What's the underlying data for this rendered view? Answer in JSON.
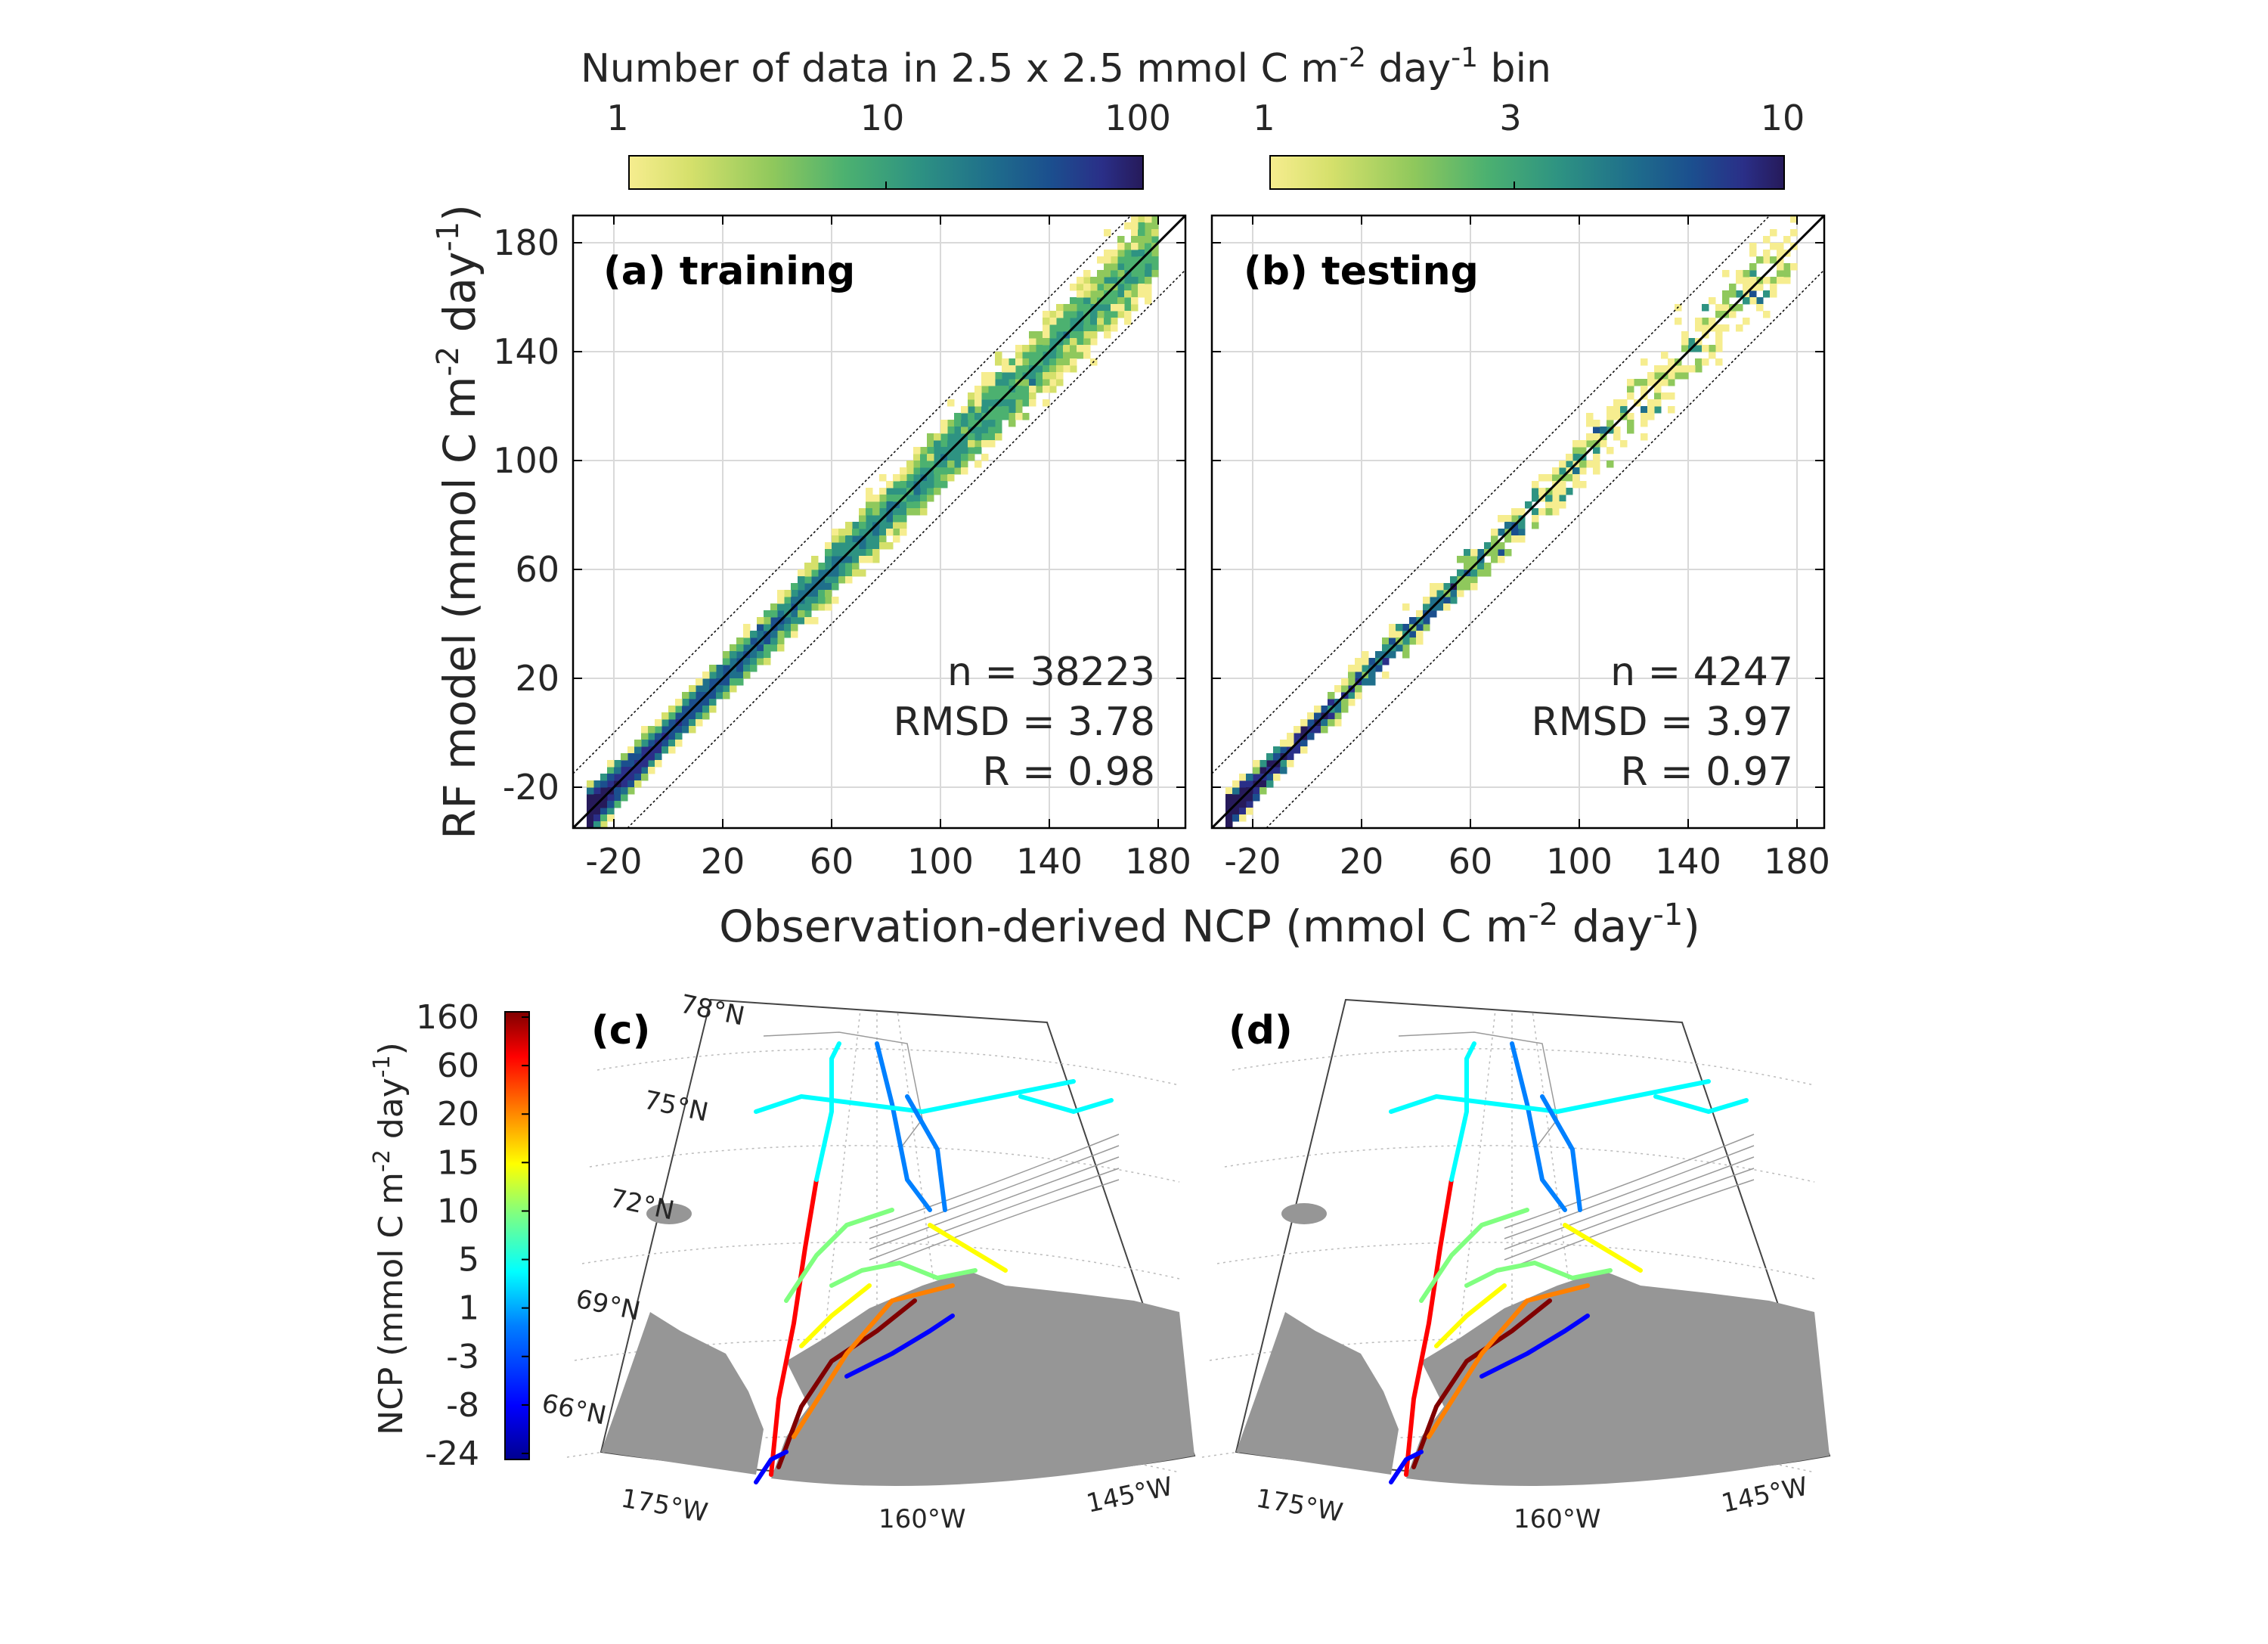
{
  "figure": {
    "top_colorbar_label": "Number of data in 2.5 x 2.5 mmol C m",
    "top_colorbar_label_sup1": "-2",
    "top_colorbar_label_mid": " day",
    "top_colorbar_label_sup2": "-1",
    "top_colorbar_label_end": " bin",
    "y_label_main": "RF model (mmol C m",
    "y_label_sup1": "-2",
    "y_label_mid": " day",
    "y_label_sup2": "-1",
    "y_label_end": ")",
    "x_label_main": "Observation-derived NCP (mmol C m",
    "x_label_sup1": "-2",
    "x_label_mid": " day",
    "x_label_sup2": "-1",
    "x_label_end": ")"
  },
  "colorbar_a": {
    "ticks": [
      "1",
      "10",
      "100"
    ],
    "scale": "log"
  },
  "colorbar_b": {
    "ticks": [
      "1",
      "3",
      "10"
    ],
    "scale": "log"
  },
  "colors": {
    "parula_like": [
      "#f6ed8f",
      "#d5e06b",
      "#8fc85c",
      "#4cb170",
      "#2e9382",
      "#1f6f8b",
      "#1b4f8e",
      "#2a2f88",
      "#261a5a"
    ],
    "jet_like": [
      "#00008f",
      "#0000ff",
      "#0080ff",
      "#00ffff",
      "#80ff80",
      "#ffff00",
      "#ff8000",
      "#ff0000",
      "#800000"
    ],
    "land": "#969696"
  },
  "chart_data": [
    {
      "type": "heatmap",
      "panel_label": "(a) training",
      "xlim": [
        -35,
        190
      ],
      "ylim": [
        -35,
        190
      ],
      "x_ticks": [
        "-20",
        "20",
        "60",
        "100",
        "140",
        "180"
      ],
      "y_ticks": [
        "-20",
        "20",
        "60",
        "100",
        "140",
        "180"
      ],
      "grid": true,
      "reference_lines": [
        "1:1 line",
        "±20 mmol offset lines"
      ],
      "stats": {
        "n": "n = 38223",
        "rmsd": "RMSD = 3.78",
        "r": "R = 0.98"
      },
      "description_points": [
        [
          -25,
          -25
        ],
        [
          0,
          0
        ],
        [
          20,
          20
        ],
        [
          40,
          40
        ],
        [
          60,
          60
        ],
        [
          80,
          80
        ],
        [
          100,
          100
        ],
        [
          120,
          120
        ],
        [
          140,
          140
        ],
        [
          170,
          145
        ]
      ]
    },
    {
      "type": "heatmap",
      "panel_label": "(b) testing",
      "xlim": [
        -35,
        190
      ],
      "ylim": [
        -35,
        190
      ],
      "x_ticks": [
        "-20",
        "20",
        "60",
        "100",
        "140",
        "180"
      ],
      "y_ticks": [
        "-20",
        "20",
        "60",
        "100",
        "140",
        "180"
      ],
      "grid": true,
      "reference_lines": [
        "1:1 line",
        "±20 mmol offset lines"
      ],
      "stats": {
        "n": "n = 4247",
        "rmsd": "RMSD = 3.97",
        "r": "R = 0.97"
      },
      "description_points": [
        [
          -25,
          -25
        ],
        [
          0,
          0
        ],
        [
          20,
          20
        ],
        [
          40,
          40
        ],
        [
          60,
          60
        ],
        [
          100,
          95
        ],
        [
          170,
          140
        ]
      ]
    }
  ],
  "maps": {
    "c_label": "(c)",
    "d_label": "(d)",
    "lat_labels": [
      "78°N",
      "75°N",
      "72°N",
      "69°N",
      "66°N"
    ],
    "lon_labels": [
      "175°W",
      "160°W",
      "145°W"
    ],
    "ncp_colorbar": {
      "label_main": "NCP (mmol C m",
      "label_sup1": "-2",
      "label_mid": " day",
      "label_sup2": "-1",
      "label_end": ")",
      "ticks": [
        "160",
        "60",
        "20",
        "15",
        "10",
        "5",
        "1",
        "-3",
        "-8",
        "-24"
      ]
    }
  }
}
